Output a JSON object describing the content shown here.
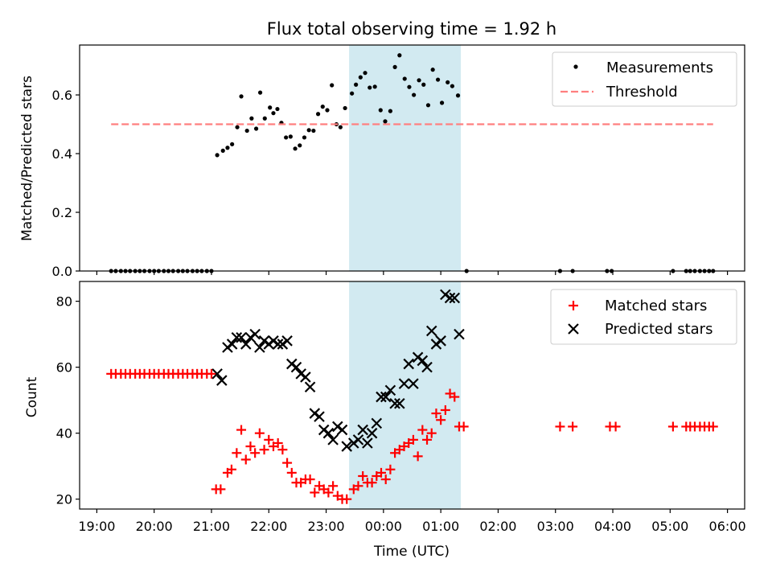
{
  "chart_data": {
    "title": "Flux total observing time = 1.92 h",
    "xlabel": "Time (UTC)",
    "x_unit": "hours after 19:00 UTC (times after midnight continue past 24:00)",
    "x_ticks": [
      {
        "value": 0,
        "label": "19:00"
      },
      {
        "value": 1,
        "label": "20:00"
      },
      {
        "value": 2,
        "label": "21:00"
      },
      {
        "value": 3,
        "label": "22:00"
      },
      {
        "value": 4,
        "label": "23:00"
      },
      {
        "value": 5,
        "label": "00:00"
      },
      {
        "value": 6,
        "label": "01:00"
      },
      {
        "value": 7,
        "label": "02:00"
      },
      {
        "value": 8,
        "label": "03:00"
      },
      {
        "value": 9,
        "label": "04:00"
      },
      {
        "value": 10,
        "label": "05:00"
      },
      {
        "value": 11,
        "label": "06:00"
      }
    ],
    "xlim": [
      -0.3,
      11.3
    ],
    "highlight": {
      "x_start": 4.4,
      "x_end": 6.35,
      "color": "#add8e6"
    },
    "panels": [
      {
        "type": "scatter",
        "ylabel": "Matched/Predicted stars",
        "ylim": [
          0,
          0.77
        ],
        "y_ticks": [
          0.0,
          0.2,
          0.4,
          0.6
        ],
        "y_tick_labels": [
          "0.0",
          "0.2",
          "0.4",
          "0.6"
        ],
        "legend": {
          "position": "top-right",
          "entries": [
            "Measurements",
            "Threshold"
          ]
        },
        "series": [
          {
            "name": "Measurements",
            "marker": "dot",
            "color": "#000000",
            "points": [
              [
                0.25,
                0
              ],
              [
                0.33,
                0
              ],
              [
                0.42,
                0
              ],
              [
                0.5,
                0
              ],
              [
                0.58,
                0
              ],
              [
                0.67,
                0
              ],
              [
                0.75,
                0
              ],
              [
                0.83,
                0
              ],
              [
                0.92,
                0
              ],
              [
                1.0,
                0
              ],
              [
                1.08,
                0
              ],
              [
                1.17,
                0
              ],
              [
                1.25,
                0
              ],
              [
                1.33,
                0
              ],
              [
                1.42,
                0
              ],
              [
                1.5,
                0
              ],
              [
                1.58,
                0
              ],
              [
                1.67,
                0
              ],
              [
                1.75,
                0
              ],
              [
                1.83,
                0
              ],
              [
                1.92,
                0
              ],
              [
                2.0,
                0
              ],
              [
                2.1,
                0.395
              ],
              [
                2.2,
                0.41
              ],
              [
                2.28,
                0.42
              ],
              [
                2.36,
                0.432
              ],
              [
                2.45,
                0.49
              ],
              [
                2.52,
                0.595
              ],
              [
                2.62,
                0.478
              ],
              [
                2.7,
                0.52
              ],
              [
                2.78,
                0.485
              ],
              [
                2.85,
                0.608
              ],
              [
                2.93,
                0.52
              ],
              [
                3.02,
                0.557
              ],
              [
                3.08,
                0.538
              ],
              [
                3.15,
                0.552
              ],
              [
                3.22,
                0.505
              ],
              [
                3.3,
                0.455
              ],
              [
                3.38,
                0.458
              ],
              [
                3.46,
                0.417
              ],
              [
                3.54,
                0.428
              ],
              [
                3.62,
                0.455
              ],
              [
                3.7,
                0.48
              ],
              [
                3.78,
                0.478
              ],
              [
                3.86,
                0.535
              ],
              [
                3.94,
                0.56
              ],
              [
                4.02,
                0.548
              ],
              [
                4.1,
                0.633
              ],
              [
                4.18,
                0.5
              ],
              [
                4.25,
                0.49
              ],
              [
                4.33,
                0.555
              ],
              [
                4.45,
                0.605
              ],
              [
                4.52,
                0.635
              ],
              [
                4.6,
                0.66
              ],
              [
                4.68,
                0.675
              ],
              [
                4.76,
                0.625
              ],
              [
                4.85,
                0.628
              ],
              [
                4.95,
                0.548
              ],
              [
                5.03,
                0.51
              ],
              [
                5.12,
                0.545
              ],
              [
                5.2,
                0.695
              ],
              [
                5.28,
                0.735
              ],
              [
                5.37,
                0.655
              ],
              [
                5.45,
                0.627
              ],
              [
                5.53,
                0.6
              ],
              [
                5.62,
                0.65
              ],
              [
                5.7,
                0.635
              ],
              [
                5.78,
                0.565
              ],
              [
                5.86,
                0.686
              ],
              [
                5.95,
                0.652
              ],
              [
                6.02,
                0.573
              ],
              [
                6.12,
                0.643
              ],
              [
                6.2,
                0.63
              ],
              [
                6.3,
                0.598
              ],
              [
                6.45,
                0
              ],
              [
                8.08,
                0
              ],
              [
                8.3,
                0
              ],
              [
                8.9,
                0
              ],
              [
                8.98,
                0
              ],
              [
                10.05,
                0
              ],
              [
                10.28,
                0
              ],
              [
                10.35,
                0
              ],
              [
                10.43,
                0
              ],
              [
                10.52,
                0
              ],
              [
                10.6,
                0
              ],
              [
                10.68,
                0
              ],
              [
                10.75,
                0
              ]
            ]
          },
          {
            "name": "Threshold",
            "type": "line",
            "style": "dashed",
            "color": "#ff7f7f",
            "points": [
              [
                0.25,
                0.5
              ],
              [
                10.75,
                0.5
              ]
            ]
          }
        ]
      },
      {
        "type": "scatter",
        "ylabel": "Count",
        "ylim": [
          17,
          86
        ],
        "y_ticks": [
          20,
          40,
          60,
          80
        ],
        "y_tick_labels": [
          "20",
          "40",
          "60",
          "80"
        ],
        "legend": {
          "position": "top-right",
          "entries": [
            "Matched stars",
            "Predicted stars"
          ]
        },
        "series": [
          {
            "name": "Matched stars",
            "marker": "plus",
            "color": "#ff0000",
            "points": [
              [
                0.25,
                58
              ],
              [
                0.33,
                58
              ],
              [
                0.42,
                58
              ],
              [
                0.5,
                58
              ],
              [
                0.58,
                58
              ],
              [
                0.67,
                58
              ],
              [
                0.75,
                58
              ],
              [
                0.83,
                58
              ],
              [
                0.92,
                58
              ],
              [
                1.0,
                58
              ],
              [
                1.08,
                58
              ],
              [
                1.17,
                58
              ],
              [
                1.25,
                58
              ],
              [
                1.33,
                58
              ],
              [
                1.42,
                58
              ],
              [
                1.5,
                58
              ],
              [
                1.58,
                58
              ],
              [
                1.67,
                58
              ],
              [
                1.75,
                58
              ],
              [
                1.83,
                58
              ],
              [
                1.92,
                58
              ],
              [
                2.0,
                58
              ],
              [
                2.08,
                23
              ],
              [
                2.16,
                23
              ],
              [
                2.28,
                28
              ],
              [
                2.35,
                29
              ],
              [
                2.44,
                34
              ],
              [
                2.52,
                41
              ],
              [
                2.6,
                32
              ],
              [
                2.68,
                36
              ],
              [
                2.76,
                34
              ],
              [
                2.84,
                40
              ],
              [
                2.92,
                35
              ],
              [
                3.0,
                38
              ],
              [
                3.08,
                36
              ],
              [
                3.16,
                37
              ],
              [
                3.24,
                35
              ],
              [
                3.32,
                31
              ],
              [
                3.4,
                28
              ],
              [
                3.48,
                25
              ],
              [
                3.56,
                25
              ],
              [
                3.64,
                26
              ],
              [
                3.72,
                26
              ],
              [
                3.8,
                22
              ],
              [
                3.88,
                24
              ],
              [
                3.96,
                23
              ],
              [
                4.04,
                22
              ],
              [
                4.12,
                24
              ],
              [
                4.2,
                21
              ],
              [
                4.28,
                20
              ],
              [
                4.36,
                20
              ],
              [
                4.48,
                23
              ],
              [
                4.56,
                24
              ],
              [
                4.64,
                27
              ],
              [
                4.72,
                25
              ],
              [
                4.8,
                25
              ],
              [
                4.88,
                27
              ],
              [
                4.96,
                28
              ],
              [
                5.04,
                26
              ],
              [
                5.12,
                29
              ],
              [
                5.2,
                34
              ],
              [
                5.28,
                35
              ],
              [
                5.36,
                36
              ],
              [
                5.44,
                37
              ],
              [
                5.52,
                38
              ],
              [
                5.6,
                33
              ],
              [
                5.68,
                41
              ],
              [
                5.76,
                38
              ],
              [
                5.84,
                40
              ],
              [
                5.92,
                46
              ],
              [
                6.0,
                44
              ],
              [
                6.08,
                47
              ],
              [
                6.16,
                52
              ],
              [
                6.24,
                51
              ],
              [
                6.32,
                42
              ],
              [
                6.4,
                42
              ],
              [
                8.08,
                42
              ],
              [
                8.3,
                42
              ],
              [
                8.95,
                42
              ],
              [
                9.05,
                42
              ],
              [
                10.05,
                42
              ],
              [
                10.28,
                42
              ],
              [
                10.35,
                42
              ],
              [
                10.43,
                42
              ],
              [
                10.52,
                42
              ],
              [
                10.6,
                42
              ],
              [
                10.68,
                42
              ],
              [
                10.75,
                42
              ]
            ]
          },
          {
            "name": "Predicted stars",
            "marker": "x",
            "color": "#000000",
            "points": [
              [
                2.1,
                58
              ],
              [
                2.18,
                56
              ],
              [
                2.28,
                66
              ],
              [
                2.36,
                67
              ],
              [
                2.44,
                69
              ],
              [
                2.52,
                69
              ],
              [
                2.6,
                67
              ],
              [
                2.68,
                69
              ],
              [
                2.76,
                70
              ],
              [
                2.84,
                66
              ],
              [
                2.92,
                68
              ],
              [
                3.0,
                67
              ],
              [
                3.08,
                68
              ],
              [
                3.16,
                67
              ],
              [
                3.24,
                67
              ],
              [
                3.32,
                68
              ],
              [
                3.4,
                61
              ],
              [
                3.48,
                60
              ],
              [
                3.56,
                58
              ],
              [
                3.64,
                57
              ],
              [
                3.72,
                54
              ],
              [
                3.8,
                46
              ],
              [
                3.88,
                45
              ],
              [
                3.96,
                41
              ],
              [
                4.04,
                40
              ],
              [
                4.12,
                38
              ],
              [
                4.2,
                42
              ],
              [
                4.28,
                41
              ],
              [
                4.36,
                36
              ],
              [
                4.48,
                37
              ],
              [
                4.56,
                38
              ],
              [
                4.64,
                41
              ],
              [
                4.72,
                37
              ],
              [
                4.8,
                40
              ],
              [
                4.88,
                43
              ],
              [
                4.96,
                51
              ],
              [
                5.04,
                51
              ],
              [
                5.12,
                53
              ],
              [
                5.2,
                49
              ],
              [
                5.28,
                49
              ],
              [
                5.36,
                55
              ],
              [
                5.44,
                61
              ],
              [
                5.52,
                55
              ],
              [
                5.6,
                63
              ],
              [
                5.68,
                62
              ],
              [
                5.76,
                60
              ],
              [
                5.84,
                71
              ],
              [
                5.92,
                67
              ],
              [
                6.0,
                68
              ],
              [
                6.08,
                82
              ],
              [
                6.16,
                81
              ],
              [
                6.24,
                81
              ],
              [
                6.32,
                70
              ]
            ]
          }
        ]
      }
    ]
  }
}
